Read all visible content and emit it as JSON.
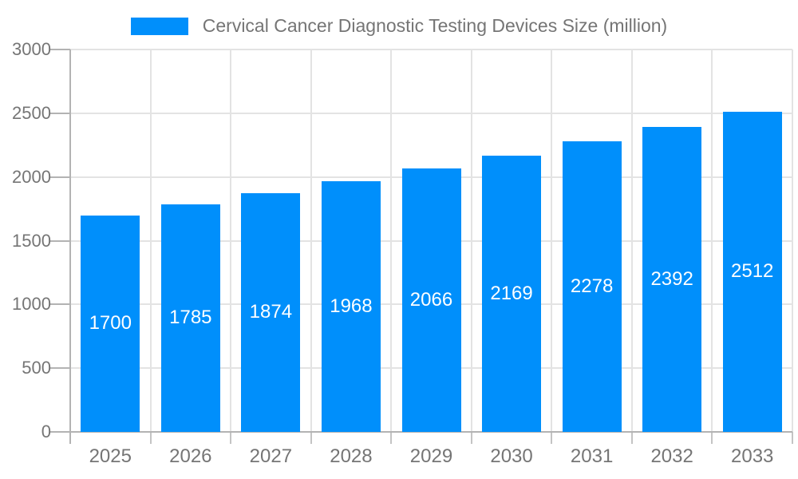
{
  "chart_data": {
    "type": "bar",
    "title": "Cervical Cancer Diagnostic Testing Devices Size (million)",
    "legend": {
      "position": "top",
      "label": "Cervical Cancer Diagnostic Testing Devices Size (million)"
    },
    "categories": [
      "2025",
      "2026",
      "2027",
      "2028",
      "2029",
      "2030",
      "2031",
      "2032",
      "2033"
    ],
    "series": [
      {
        "name": "Cervical Cancer Diagnostic Testing Devices Size (million)",
        "values": [
          1700,
          1785,
          1874,
          1968,
          2066,
          2169,
          2278,
          2392,
          2512
        ]
      }
    ],
    "value_labels_shown": true,
    "xlabel": "",
    "ylabel": "",
    "ylim": [
      0,
      3000
    ],
    "yticks": [
      0,
      500,
      1000,
      1500,
      2000,
      2500,
      3000
    ],
    "grid": true,
    "colors": {
      "bar": "#008FFB",
      "value_label": "#ffffff",
      "axis_label": "#757575",
      "grid_line": "#e3e3e3",
      "axis_line": "#b3b3b3",
      "tick": "#c4c4c4"
    }
  }
}
